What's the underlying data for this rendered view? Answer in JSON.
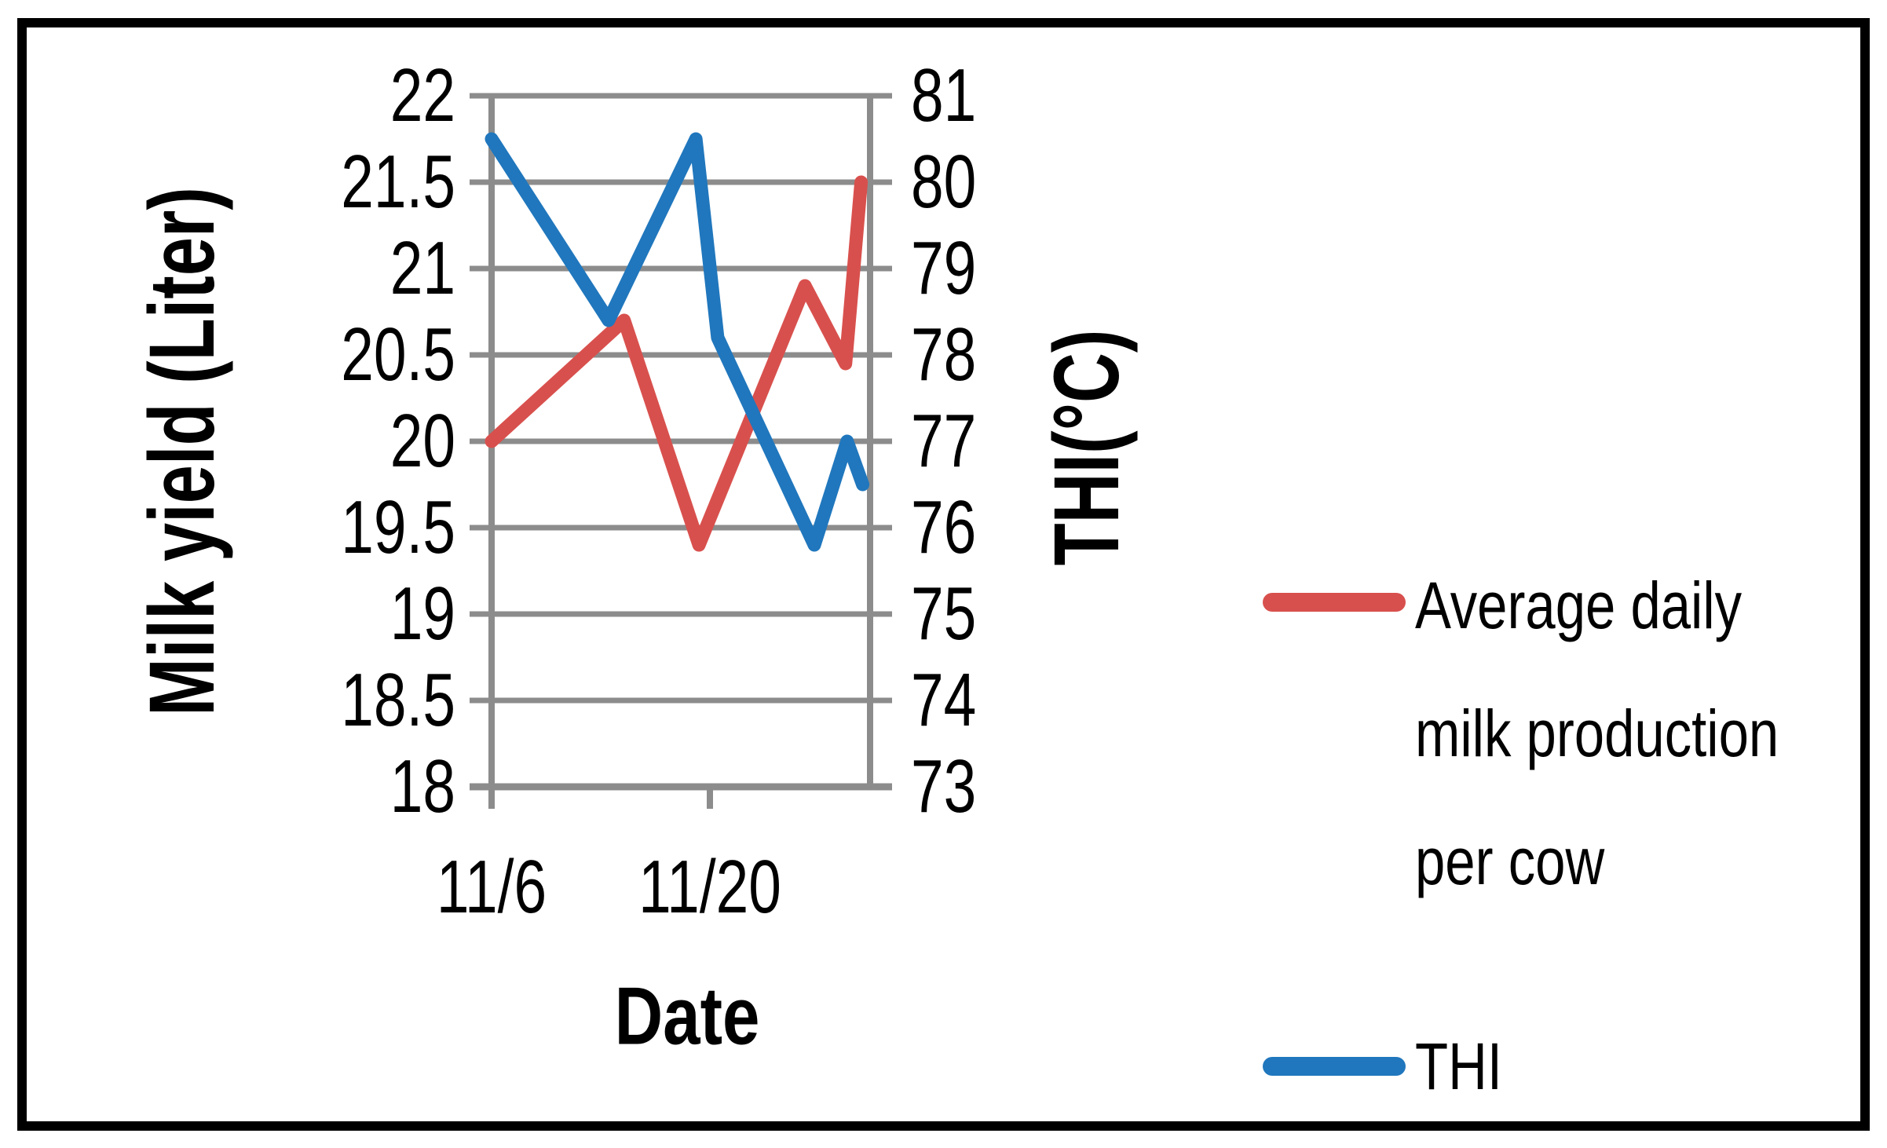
{
  "chart_data": {
    "type": "line",
    "title": "",
    "x_axis": {
      "label": "Date",
      "tick_labels": [
        "11/6",
        "11/20"
      ],
      "tick_days": [
        0,
        14
      ],
      "range_days": [
        0,
        24.3
      ],
      "unit": "days since 11/6"
    },
    "y_axis_left": {
      "label": "Milk yield (Liter)",
      "min": 18,
      "max": 22,
      "step": 0.5,
      "tick_labels": [
        "22",
        "21.5",
        "21",
        "20.5",
        "20",
        "19.5",
        "19",
        "18.5",
        "18"
      ],
      "tick_values": [
        22,
        21.5,
        21,
        20.5,
        20,
        19.5,
        19,
        18.5,
        18
      ]
    },
    "y_axis_right": {
      "label": "THI(°C)",
      "min": 73,
      "max": 81,
      "step": 1,
      "tick_labels": [
        "81",
        "80",
        "79",
        "78",
        "77",
        "76",
        "75",
        "74",
        "73"
      ],
      "tick_values": [
        81,
        80,
        79,
        78,
        77,
        76,
        75,
        74,
        73
      ]
    },
    "grid": {
      "horizontal": true,
      "vertical": false,
      "color": "#8c8c8c"
    },
    "legend": {
      "position": "right"
    },
    "series": [
      {
        "name": "Average daily milk production per cow",
        "display_lines": [
          "Average daily",
          "milk production",
          "per cow"
        ],
        "axis": "left",
        "color": "#d8504d",
        "points": [
          {
            "day": 0,
            "value": 20.0
          },
          {
            "day": 8.5,
            "value": 20.7
          },
          {
            "day": 13.3,
            "value": 19.4
          },
          {
            "day": 20.1,
            "value": 20.9
          },
          {
            "day": 22.7,
            "value": 20.45
          },
          {
            "day": 23.7,
            "value": 21.5
          }
        ]
      },
      {
        "name": "THI",
        "display_lines": [
          "THI"
        ],
        "axis": "right",
        "color": "#2077bd",
        "points": [
          {
            "day": 0,
            "value": 80.5
          },
          {
            "day": 7.5,
            "value": 78.4
          },
          {
            "day": 13.1,
            "value": 80.5
          },
          {
            "day": 14.5,
            "value": 78.2
          },
          {
            "day": 20.7,
            "value": 75.8
          },
          {
            "day": 22.8,
            "value": 77.0
          },
          {
            "day": 23.8,
            "value": 76.5
          }
        ]
      }
    ],
    "colors": {
      "milk_series": "#d8504d",
      "thi_series": "#2077bd",
      "gridline": "#8c8c8c",
      "text": "#000000",
      "border": "#000000"
    }
  }
}
